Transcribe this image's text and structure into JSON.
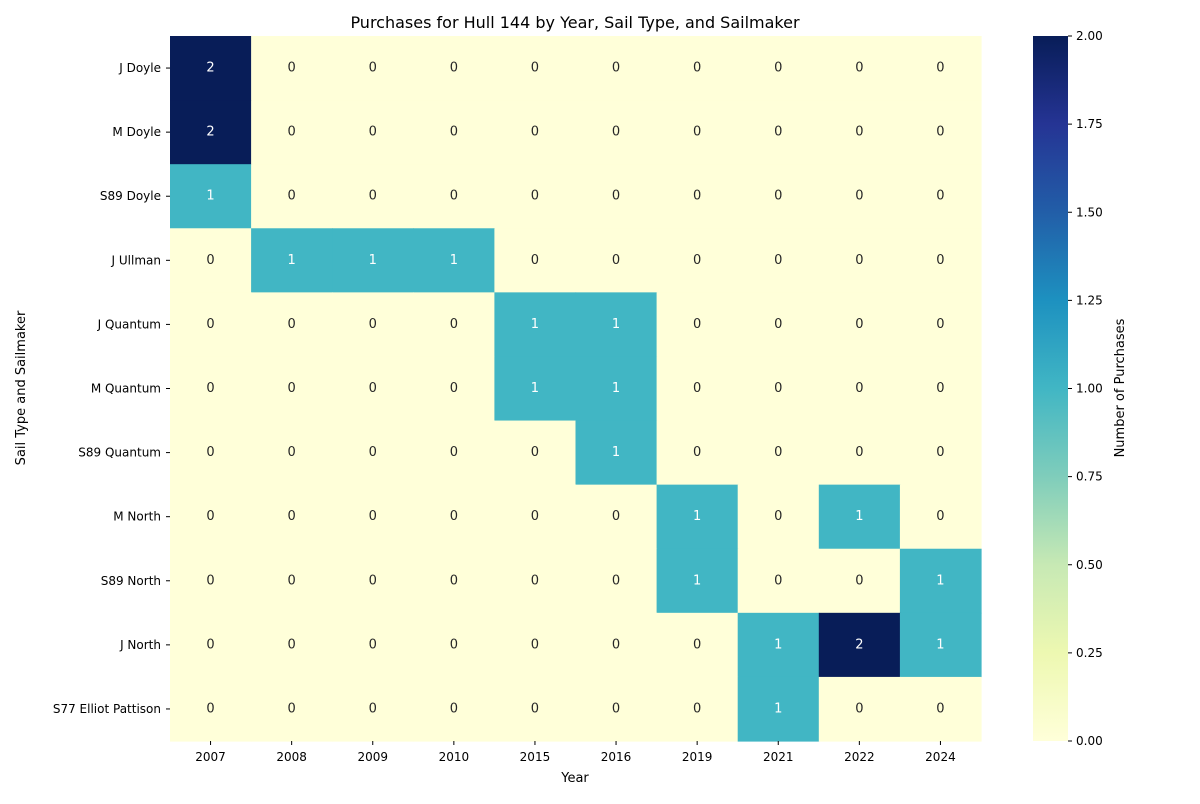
{
  "chart_data": {
    "type": "heatmap",
    "title": "Purchases for Hull 144 by Year, Sail Type, and Sailmaker",
    "xlabel": "Year",
    "ylabel": "Sail Type and Sailmaker",
    "x": [
      "2007",
      "2008",
      "2009",
      "2010",
      "2015",
      "2016",
      "2019",
      "2021",
      "2022",
      "2024"
    ],
    "y": [
      "J Doyle",
      "M Doyle",
      "S89 Doyle",
      "J Ullman",
      "J Quantum",
      "M Quantum",
      "S89 Quantum",
      "M North",
      "S89 North",
      "J North",
      "S77 Elliot Pattison"
    ],
    "values": [
      [
        2,
        0,
        0,
        0,
        0,
        0,
        0,
        0,
        0,
        0
      ],
      [
        2,
        0,
        0,
        0,
        0,
        0,
        0,
        0,
        0,
        0
      ],
      [
        1,
        0,
        0,
        0,
        0,
        0,
        0,
        0,
        0,
        0
      ],
      [
        0,
        1,
        1,
        1,
        0,
        0,
        0,
        0,
        0,
        0
      ],
      [
        0,
        0,
        0,
        0,
        1,
        1,
        0,
        0,
        0,
        0
      ],
      [
        0,
        0,
        0,
        0,
        1,
        1,
        0,
        0,
        0,
        0
      ],
      [
        0,
        0,
        0,
        0,
        0,
        1,
        0,
        0,
        0,
        0
      ],
      [
        0,
        0,
        0,
        0,
        0,
        0,
        1,
        0,
        1,
        0
      ],
      [
        0,
        0,
        0,
        0,
        0,
        0,
        1,
        0,
        0,
        1
      ],
      [
        0,
        0,
        0,
        0,
        0,
        0,
        0,
        1,
        2,
        1
      ],
      [
        0,
        0,
        0,
        0,
        0,
        0,
        0,
        1,
        0,
        0
      ]
    ],
    "colormap": "YlGnBu",
    "vmin": 0,
    "vmax": 2,
    "colorbar": {
      "label": "Number of Purchases",
      "ticks": [
        "0.00",
        "0.25",
        "0.50",
        "0.75",
        "1.00",
        "1.25",
        "1.50",
        "1.75",
        "2.00"
      ]
    },
    "annotations": true,
    "grid": false
  }
}
